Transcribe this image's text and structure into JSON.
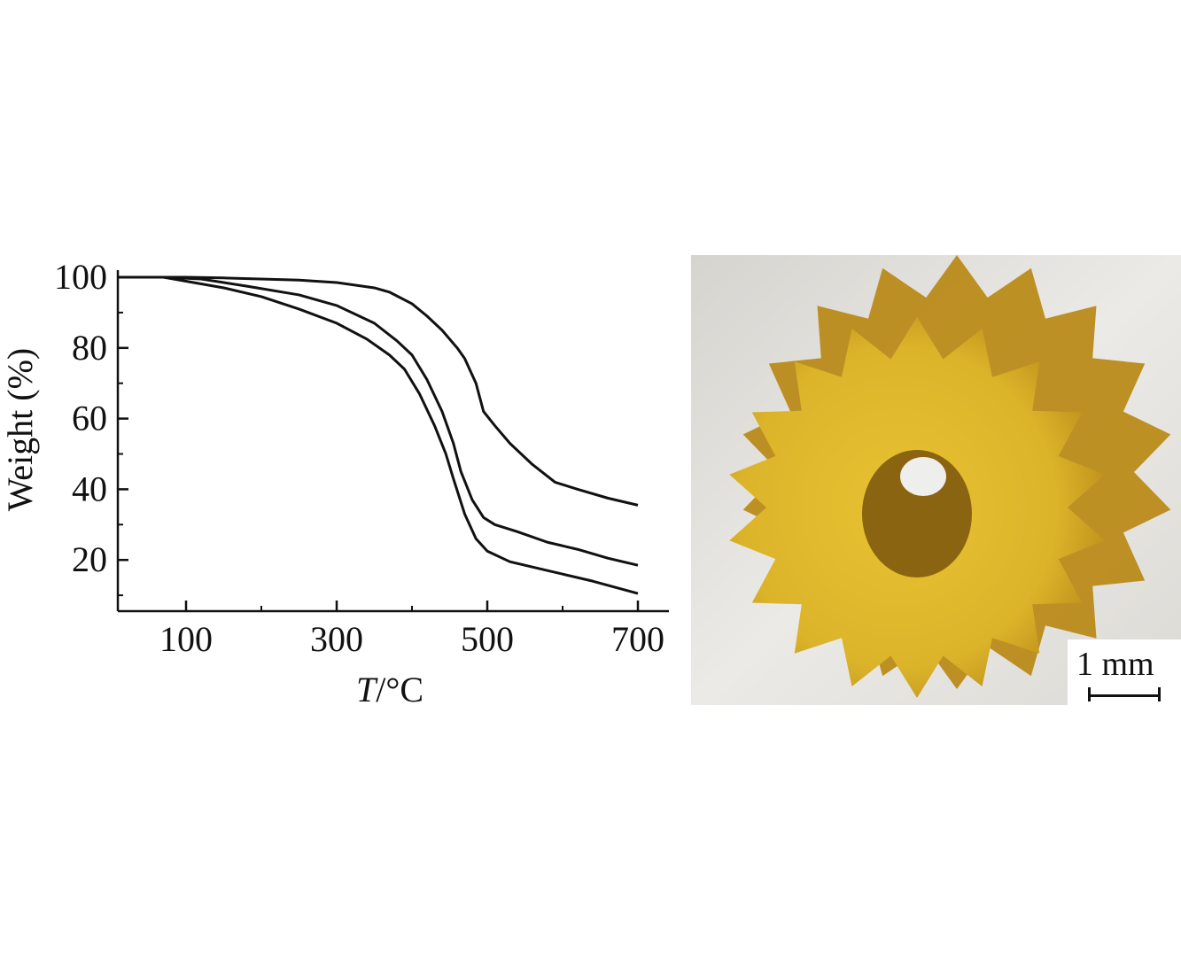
{
  "chart_data": {
    "type": "line",
    "title": "",
    "xlabel": "T/°C",
    "xlabel_italic": "T",
    "xlabel_rest": "/°C",
    "ylabel": "Weight (%)",
    "xlim": [
      10,
      740
    ],
    "ylim": [
      5.5,
      100
    ],
    "x_ticks": [
      100,
      300,
      500,
      700
    ],
    "x_minor_ticks": [
      200,
      400,
      600
    ],
    "y_ticks": [
      20,
      40,
      60,
      80,
      100
    ],
    "y_minor_ticks": [
      10,
      30,
      50,
      70,
      90
    ],
    "grid": false,
    "line_color": "#111111",
    "series": [
      {
        "x": [
          10,
          100,
          150,
          250,
          300,
          350,
          370,
          400,
          420,
          440,
          460,
          470,
          485,
          495,
          510,
          530,
          560,
          590,
          620,
          660,
          700
        ],
        "y": [
          100,
          100,
          99.8,
          99.2,
          98.5,
          97,
          95.8,
          92.5,
          89,
          85,
          80,
          77,
          70,
          62,
          58,
          53,
          47,
          42,
          40,
          37.5,
          35.5
        ]
      },
      {
        "x": [
          10,
          70,
          120,
          180,
          250,
          300,
          350,
          380,
          400,
          420,
          440,
          455,
          465,
          480,
          495,
          510,
          540,
          580,
          620,
          660,
          700
        ],
        "y": [
          100,
          100,
          99.5,
          97.5,
          95,
          92,
          87,
          82,
          78,
          71,
          62,
          53,
          45,
          37,
          32,
          30,
          28,
          25,
          23,
          20.5,
          18.5
        ]
      },
      {
        "x": [
          10,
          70,
          110,
          150,
          200,
          250,
          300,
          340,
          370,
          390,
          410,
          430,
          445,
          455,
          470,
          485,
          500,
          530,
          580,
          640,
          700
        ],
        "y": [
          100,
          100,
          98.5,
          97,
          94.5,
          91,
          87,
          82.5,
          78,
          74,
          67,
          58,
          50,
          43,
          33,
          26,
          22.5,
          19.5,
          17,
          14,
          10.5
        ]
      }
    ]
  },
  "photo": {
    "subject": "gear",
    "gear_color": "#d9b22a",
    "background_color": "#e4e2de",
    "scale_bar_label": "1 mm"
  }
}
